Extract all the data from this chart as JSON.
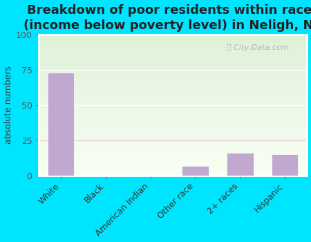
{
  "title": "Breakdown of poor residents within races\n(income below poverty level) in Neligh, NE",
  "categories": [
    "White",
    "Black",
    "American Indian",
    "Other race",
    "2+ races",
    "Hispanic"
  ],
  "values": [
    73,
    0,
    0,
    7,
    16,
    15
  ],
  "bar_color": "#c0a8d0",
  "ylabel": "absolute numbers",
  "ylim": [
    0,
    100
  ],
  "yticks": [
    0,
    25,
    50,
    75,
    100
  ],
  "bg_color_top": "#dff0d8",
  "bg_color_bottom": "#f8fff4",
  "outer_background": "#00e5ff",
  "plot_frame_color": "#ffffff",
  "grid_color_major": "#ffffff",
  "grid_color_25": "#e8c8d8",
  "title_fontsize": 13,
  "label_fontsize": 9,
  "tick_fontsize": 9
}
